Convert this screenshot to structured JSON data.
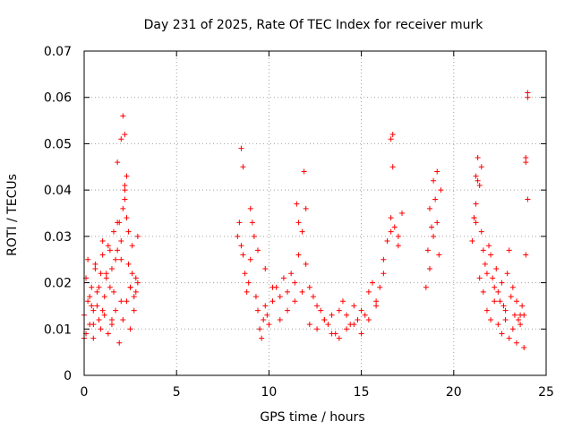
{
  "chart_data": {
    "type": "scatter",
    "title": "Day 231 of 2025, Rate Of TEC Index for receiver murk",
    "xlabel": "GPS time / hours",
    "ylabel": "ROTI / TECUs",
    "xlim": [
      0,
      25
    ],
    "ylim": [
      0,
      0.07
    ],
    "xticks": [
      "0",
      "5",
      "10",
      "15",
      "20",
      "25"
    ],
    "yticks": [
      "0",
      "0.01",
      "0.02",
      "0.03",
      "0.04",
      "0.05",
      "0.06",
      "0.07"
    ],
    "grid": true,
    "marker": "plus",
    "color": "#ff0000",
    "x": [
      0.0,
      0.1,
      0.2,
      0.3,
      0.4,
      0.5,
      0.6,
      0.7,
      0.8,
      0.9,
      1.0,
      1.1,
      1.2,
      1.3,
      1.4,
      1.5,
      1.6,
      1.7,
      1.8,
      1.9,
      2.0,
      2.1,
      2.2,
      2.3,
      2.4,
      2.5,
      2.6,
      2.7,
      2.8,
      2.9,
      0.1,
      0.3,
      0.5,
      0.7,
      0.9,
      1.1,
      1.3,
      1.5,
      1.7,
      1.9,
      2.1,
      2.3,
      2.5,
      2.7,
      2.9,
      0.2,
      0.6,
      1.0,
      1.4,
      1.8,
      2.2,
      2.6,
      0.4,
      0.8,
      1.2,
      1.6,
      2.0,
      2.4,
      2.8,
      0.0,
      0.5,
      1.0,
      1.5,
      2.0,
      2.5,
      1.8,
      2.0,
      2.1,
      2.2,
      2.2,
      2.3,
      8.3,
      8.4,
      8.5,
      8.6,
      8.7,
      8.8,
      8.9,
      9.0,
      9.1,
      9.2,
      9.3,
      9.4,
      9.5,
      9.6,
      9.7,
      9.8,
      9.9,
      10.0,
      10.2,
      10.4,
      10.6,
      10.8,
      11.0,
      11.2,
      11.4,
      11.6,
      11.8,
      12.0,
      12.2,
      12.4,
      12.6,
      12.8,
      13.0,
      13.2,
      13.4,
      13.6,
      13.8,
      14.0,
      14.2,
      14.4,
      14.6,
      14.8,
      15.0,
      15.2,
      15.4,
      15.6,
      15.8,
      16.0,
      16.2,
      16.4,
      16.6,
      16.8,
      17.0,
      17.2,
      9.0,
      9.4,
      9.8,
      10.2,
      10.6,
      11.0,
      11.4,
      11.8,
      12.2,
      12.6,
      13.0,
      13.4,
      13.8,
      14.2,
      14.6,
      15.0,
      15.4,
      15.8,
      16.2,
      16.6,
      17.0,
      8.5,
      8.6,
      11.5,
      11.6,
      11.9,
      12.0,
      16.6,
      16.7,
      16.7,
      18.5,
      18.6,
      18.7,
      18.8,
      18.9,
      19.0,
      19.1,
      19.2,
      19.3,
      18.7,
      18.9,
      19.1,
      21.0,
      21.1,
      21.2,
      21.3,
      21.4,
      21.5,
      21.6,
      21.7,
      21.8,
      21.9,
      22.0,
      22.1,
      22.2,
      22.3,
      22.4,
      22.5,
      22.6,
      22.7,
      22.8,
      22.9,
      23.0,
      23.1,
      23.2,
      23.3,
      23.4,
      23.5,
      23.6,
      23.7,
      23.8,
      23.9,
      24.0,
      21.2,
      21.4,
      21.6,
      21.8,
      22.0,
      22.2,
      22.4,
      22.6,
      22.8,
      23.0,
      23.2,
      23.4,
      23.6,
      23.8,
      21.1,
      21.3,
      21.5,
      23.9,
      24.0,
      24.0,
      23.9,
      21.2
    ],
    "y": [
      0.013,
      0.021,
      0.016,
      0.011,
      0.019,
      0.014,
      0.024,
      0.018,
      0.012,
      0.022,
      0.026,
      0.017,
      0.021,
      0.028,
      0.019,
      0.023,
      0.031,
      0.025,
      0.027,
      0.033,
      0.029,
      0.036,
      0.038,
      0.034,
      0.024,
      0.019,
      0.022,
      0.017,
      0.021,
      0.03,
      0.009,
      0.017,
      0.008,
      0.015,
      0.01,
      0.013,
      0.009,
      0.011,
      0.014,
      0.007,
      0.012,
      0.016,
      0.01,
      0.014,
      0.02,
      0.025,
      0.023,
      0.029,
      0.027,
      0.033,
      0.041,
      0.028,
      0.015,
      0.019,
      0.022,
      0.018,
      0.025,
      0.031,
      0.018,
      0.008,
      0.011,
      0.014,
      0.012,
      0.016,
      0.019,
      0.046,
      0.051,
      0.056,
      0.052,
      0.04,
      0.043,
      0.03,
      0.033,
      0.028,
      0.026,
      0.022,
      0.018,
      0.02,
      0.025,
      0.033,
      0.03,
      0.017,
      0.014,
      0.01,
      0.008,
      0.012,
      0.015,
      0.013,
      0.011,
      0.016,
      0.019,
      0.017,
      0.021,
      0.018,
      0.022,
      0.02,
      0.026,
      0.031,
      0.024,
      0.019,
      0.017,
      0.015,
      0.014,
      0.012,
      0.011,
      0.013,
      0.009,
      0.014,
      0.016,
      0.013,
      0.011,
      0.015,
      0.012,
      0.014,
      0.013,
      0.018,
      0.02,
      0.016,
      0.019,
      0.025,
      0.029,
      0.034,
      0.032,
      0.028,
      0.035,
      0.036,
      0.027,
      0.023,
      0.019,
      0.012,
      0.014,
      0.016,
      0.018,
      0.011,
      0.01,
      0.012,
      0.009,
      0.008,
      0.01,
      0.011,
      0.009,
      0.012,
      0.015,
      0.022,
      0.031,
      0.03,
      0.049,
      0.045,
      0.037,
      0.033,
      0.044,
      0.036,
      0.051,
      0.045,
      0.052,
      0.019,
      0.027,
      0.036,
      0.032,
      0.042,
      0.038,
      0.033,
      0.026,
      0.04,
      0.023,
      0.03,
      0.044,
      0.029,
      0.034,
      0.043,
      0.047,
      0.041,
      0.031,
      0.027,
      0.024,
      0.022,
      0.028,
      0.026,
      0.021,
      0.019,
      0.023,
      0.018,
      0.016,
      0.02,
      0.015,
      0.014,
      0.022,
      0.027,
      0.017,
      0.019,
      0.013,
      0.016,
      0.012,
      0.011,
      0.015,
      0.013,
      0.026,
      0.038,
      0.037,
      0.021,
      0.018,
      0.014,
      0.012,
      0.016,
      0.011,
      0.009,
      0.012,
      0.008,
      0.01,
      0.007,
      0.013,
      0.006,
      0.034,
      0.042,
      0.045,
      0.047,
      0.061,
      0.06,
      0.046,
      0.033
    ]
  }
}
